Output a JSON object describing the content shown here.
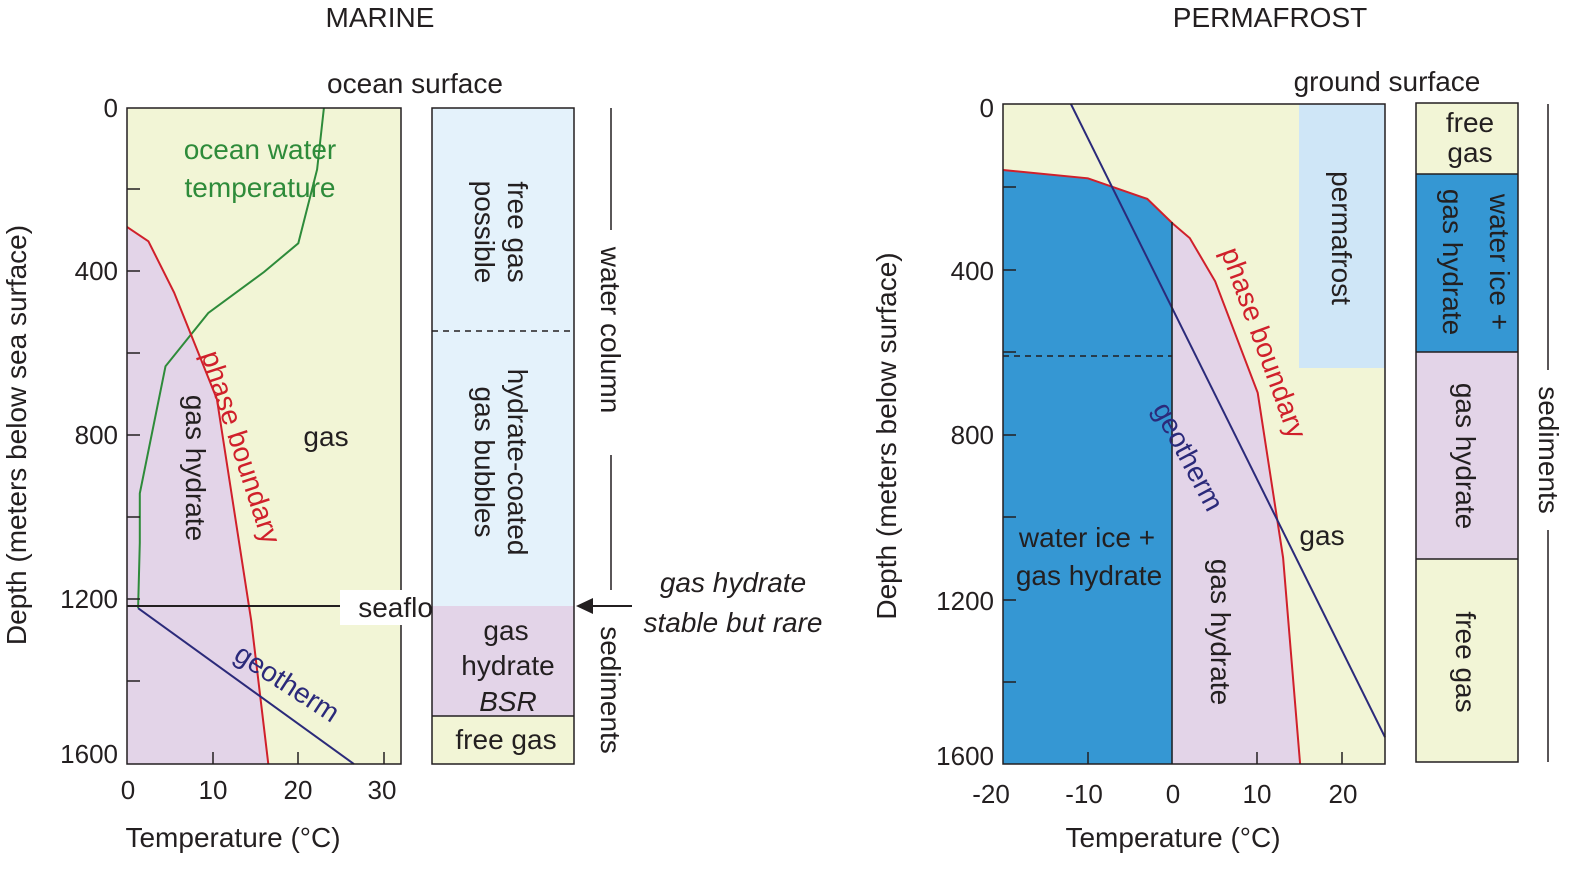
{
  "colors": {
    "gas_bg": "#f2f5d6",
    "hydrate": "#e3d4e8",
    "ice_hydrate": "#3597d3",
    "water_column": "#e4f2fb",
    "permafrost": "#cfe6f7",
    "phase_boundary": "#d0202b",
    "ocean_temp": "#2e8b3a",
    "geotherm": "#2b2a7a"
  },
  "marine": {
    "title": "MARINE",
    "surface_label": "ocean surface",
    "y_label": "Depth (meters below sea surface)",
    "x_label": "Temperature (°C)",
    "x_ticks": [
      "0",
      "10",
      "20",
      "30"
    ],
    "y_ticks": [
      "0",
      "400",
      "800",
      "1200",
      "1600"
    ],
    "region_labels": {
      "ocean_line1": "ocean water",
      "ocean_line2": "temperature",
      "phase_boundary": "phase boundary",
      "gas": "gas",
      "gas_hydrate": "gas hydrate",
      "geotherm": "geotherm",
      "seafloor": "seafloor"
    },
    "column": {
      "free_gas_possible_1": "free gas",
      "free_gas_possible_2": "possible",
      "coated_1": "hydrate-coated",
      "coated_2": "gas bubbles",
      "hydrate_1": "gas",
      "hydrate_2": "hydrate",
      "bsr": "BSR",
      "free_gas": "free gas"
    },
    "side_labels": {
      "water_column": "water column",
      "sediments": "sediments"
    },
    "annotation": {
      "line1": "gas hydrate",
      "line2": "stable but rare"
    },
    "chart_data": {
      "type": "line",
      "title": "MARINE",
      "xlabel": "Temperature (°C)",
      "ylabel": "Depth (meters below sea surface)",
      "xlim": [
        0,
        32
      ],
      "ylim": [
        1600,
        0
      ],
      "series": [
        {
          "name": "ocean water temperature",
          "x": [
            23,
            22.2,
            20,
            16,
            9.5,
            4.5,
            1.5,
            1.5,
            1.3
          ],
          "y": [
            0,
            150,
            330,
            400,
            500,
            630,
            940,
            1060,
            1220
          ]
        },
        {
          "name": "phase boundary",
          "x": [
            0,
            2.5,
            5.5,
            10.5,
            14.5,
            16.5
          ],
          "y": [
            290,
            325,
            450,
            710,
            1250,
            1600
          ]
        },
        {
          "name": "geotherm",
          "x": [
            1.3,
            26.5
          ],
          "y": [
            1220,
            1600
          ]
        }
      ],
      "seafloor_depth": 1220
    }
  },
  "permafrost": {
    "title": "PERMAFROST",
    "surface_label": "ground surface",
    "y_label": "Depth (meters below surface)",
    "x_label": "Temperature (°C)",
    "x_ticks": [
      "-20",
      "-10",
      "0",
      "10",
      "20"
    ],
    "y_ticks": [
      "0",
      "400",
      "800",
      "1200",
      "1600"
    ],
    "region_labels": {
      "permafrost": "permafrost",
      "phase_boundary": "phase boundary",
      "geotherm": "geotherm",
      "gas": "gas",
      "ice_1": "water ice +",
      "ice_2": "gas hydrate",
      "gas_hydrate": "gas hydrate"
    },
    "column": {
      "free_gas_1": "free",
      "free_gas_2": "gas",
      "ice_1": "water ice +",
      "ice_2": "gas hydrate",
      "gas_hydrate": "gas hydrate",
      "free_gas": "free gas"
    },
    "side_labels": {
      "sediments": "sediments"
    },
    "chart_data": {
      "type": "line",
      "title": "PERMAFROST",
      "xlabel": "Temperature (°C)",
      "ylabel": "Depth (meters below surface)",
      "xlim": [
        -20,
        25
      ],
      "ylim": [
        1600,
        0
      ],
      "series": [
        {
          "name": "phase boundary",
          "x": [
            -20,
            -10,
            -3,
            0,
            2,
            5,
            10,
            13,
            15
          ],
          "y": [
            160,
            180,
            230,
            290,
            325,
            430,
            700,
            1100,
            1600
          ]
        },
        {
          "name": "geotherm",
          "x": [
            -12,
            25
          ],
          "y": [
            0,
            1535
          ]
        }
      ],
      "permafrost_base_depth": 620
    }
  }
}
